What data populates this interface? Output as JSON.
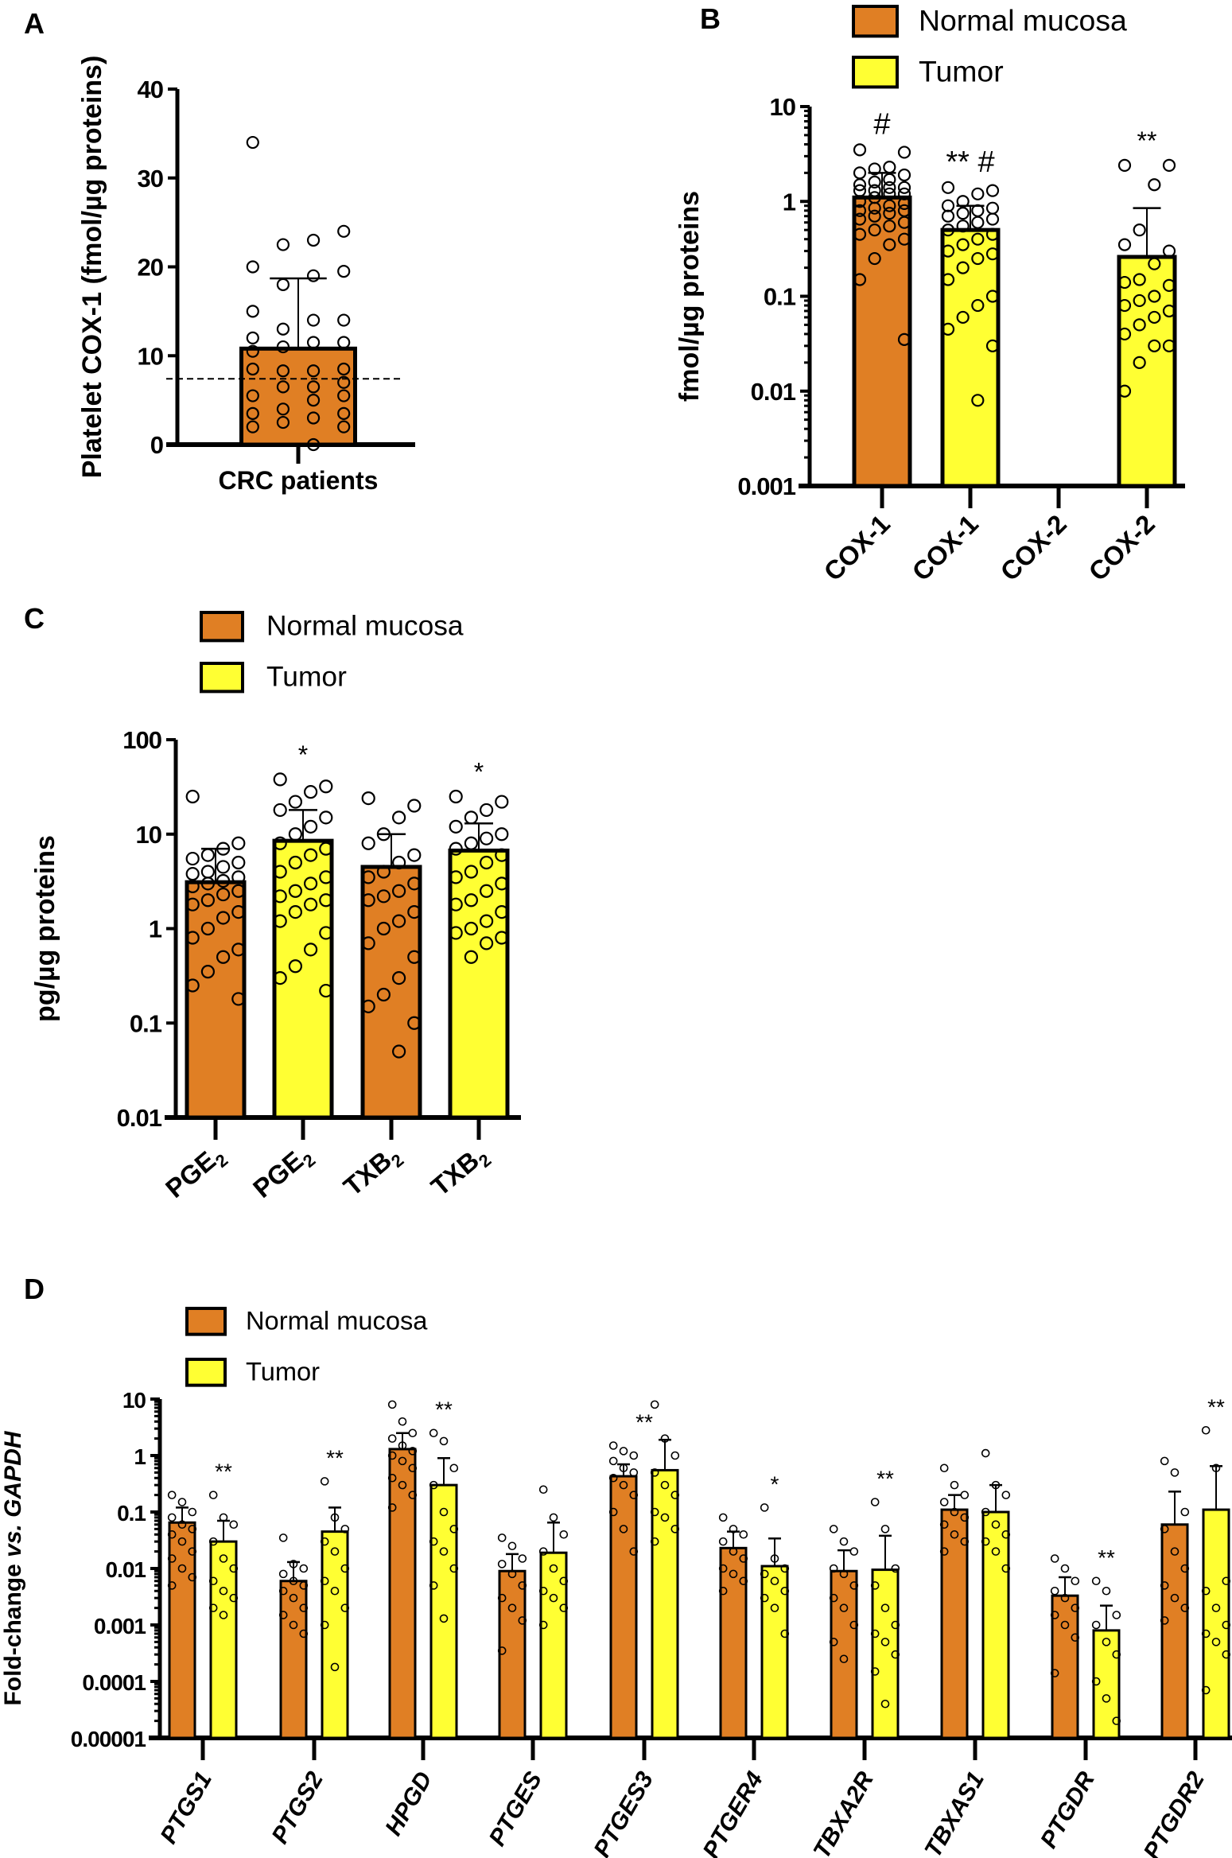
{
  "colors": {
    "normal": "#e07f24",
    "tumor": "#ffff33",
    "ink": "#000000"
  },
  "legend": {
    "normal": "Normal mucosa",
    "tumor": "Tumor"
  },
  "chart_data": [
    {
      "panel": "A",
      "type": "bar",
      "scale": "linear",
      "ylabel": "Platelet COX-1 (fmol/µg proteins)",
      "ylim": [
        0,
        40
      ],
      "yticks": [
        "0",
        "10",
        "20",
        "30",
        "40"
      ],
      "categories": [
        "CRC patients"
      ],
      "reference_line": 7.4,
      "bars": [
        {
          "group": "normal",
          "mean": 10.8,
          "err": 18.7,
          "points": [
            34,
            24,
            23,
            22.5,
            20,
            19.5,
            19,
            18,
            15,
            14,
            14,
            13,
            12,
            11.5,
            11.5,
            11,
            10.5,
            8.5,
            8.3,
            8.3,
            8.5,
            7,
            6.5,
            6.5,
            5.5,
            5.5,
            5,
            4,
            3.5,
            3.5,
            3,
            2.5,
            2,
            2,
            0
          ]
        }
      ]
    },
    {
      "panel": "B",
      "type": "bar",
      "scale": "log",
      "ylabel": "fmol/µg proteins",
      "ylim": [
        0.001,
        10
      ],
      "yticks": [
        "0.001",
        "0.01",
        "0.1",
        "1",
        "10"
      ],
      "categories": [
        "COX-1",
        "COX-1",
        "COX-2",
        "COX-2"
      ],
      "bars": [
        {
          "group": "normal",
          "mean": 1.1,
          "err": 2.0,
          "annotation": "#",
          "points": [
            3.5,
            3.3,
            2.3,
            2.2,
            2.0,
            1.9,
            1.7,
            1.6,
            1.5,
            1.4,
            1.4,
            1.3,
            1.3,
            1.2,
            1.2,
            1.1,
            1.0,
            0.95,
            0.9,
            0.85,
            0.8,
            0.8,
            0.75,
            0.7,
            0.65,
            0.6,
            0.55,
            0.5,
            0.45,
            0.4,
            0.35,
            0.25,
            0.15,
            0.035
          ]
        },
        {
          "group": "tumor",
          "mean": 0.5,
          "err": 0.9,
          "annotation": "** #",
          "points": [
            1.4,
            1.3,
            1.2,
            1.0,
            0.9,
            0.85,
            0.8,
            0.75,
            0.7,
            0.65,
            0.6,
            0.55,
            0.5,
            0.45,
            0.4,
            0.35,
            0.3,
            0.28,
            0.25,
            0.2,
            0.15,
            0.1,
            0.08,
            0.06,
            0.045,
            0.03,
            0.008
          ]
        },
        {
          "group": "normal",
          "mean": null,
          "err": null,
          "points": []
        },
        {
          "group": "tumor",
          "mean": 0.26,
          "err": 0.85,
          "annotation": "**",
          "points": [
            2.4,
            2.4,
            1.5,
            0.5,
            0.35,
            0.3,
            0.22,
            0.15,
            0.14,
            0.13,
            0.1,
            0.09,
            0.08,
            0.07,
            0.06,
            0.05,
            0.04,
            0.03,
            0.03,
            0.02,
            0.01
          ]
        }
      ]
    },
    {
      "panel": "C",
      "type": "bar",
      "scale": "log",
      "ylabel": "pg/µg proteins",
      "ylim": [
        0.01,
        100
      ],
      "yticks": [
        "0.01",
        "0.1",
        "1",
        "10",
        "100"
      ],
      "categories": [
        {
          "text": "PGE",
          "sub": "2"
        },
        {
          "text": "PGE",
          "sub": "2"
        },
        {
          "text": "TXB",
          "sub": "2"
        },
        {
          "text": "TXB",
          "sub": "2"
        }
      ],
      "bars": [
        {
          "group": "normal",
          "mean": 3.1,
          "err": 7,
          "points": [
            25,
            8,
            7,
            6,
            5.5,
            5,
            4.5,
            4,
            3.8,
            3.5,
            3.2,
            3,
            2.8,
            2.5,
            2.3,
            2,
            1.8,
            1.5,
            1.3,
            1,
            0.8,
            0.6,
            0.5,
            0.35,
            0.25,
            0.18
          ]
        },
        {
          "group": "tumor",
          "mean": 8.5,
          "err": 18,
          "annotation": "*",
          "points": [
            38,
            32,
            28,
            22,
            18,
            15,
            12,
            10,
            8,
            7,
            6,
            5,
            4,
            3.5,
            3,
            2.5,
            2.2,
            2,
            1.8,
            1.5,
            1.2,
            0.9,
            0.6,
            0.4,
            0.3,
            0.22
          ]
        },
        {
          "group": "normal",
          "mean": 4.5,
          "err": 10,
          "points": [
            24,
            20,
            15,
            10,
            8,
            6,
            5,
            4,
            3.5,
            3,
            2.5,
            2.2,
            2,
            1.5,
            1.2,
            1,
            0.7,
            0.5,
            0.3,
            0.2,
            0.15,
            0.1,
            0.05
          ]
        },
        {
          "group": "tumor",
          "mean": 6.7,
          "err": 13,
          "annotation": "*",
          "points": [
            25,
            22,
            18,
            15,
            12,
            10,
            9,
            8,
            7,
            6,
            5,
            4,
            3.5,
            3,
            2.5,
            2,
            1.8,
            1.5,
            1.2,
            1,
            0.9,
            0.8,
            0.7,
            0.5
          ]
        }
      ]
    },
    {
      "panel": "D",
      "type": "grouped-bar",
      "scale": "log",
      "ylabel": "Fold-change ",
      "ylabel_italic": "vs. GAPDH",
      "ylim": [
        1e-05,
        10
      ],
      "yticks": [
        "0.00001",
        "0.0001",
        "0.001",
        "0.01",
        "0.1",
        "1",
        "10"
      ],
      "categories": [
        "PTGS1",
        "PTGS2",
        "HPGD",
        "PTGES",
        "PTGES3",
        "PTGER4",
        "TBXA2R",
        "TBXAS1",
        "PTGDR",
        "PTGDR2"
      ],
      "series": [
        {
          "name": "Normal mucosa",
          "group": "normal",
          "means": [
            0.065,
            0.006,
            1.3,
            0.009,
            0.43,
            0.023,
            0.009,
            0.11,
            0.0033,
            0.06
          ],
          "errs": [
            0.12,
            0.013,
            2.5,
            0.018,
            0.7,
            0.045,
            0.021,
            0.2,
            0.007,
            0.23
          ],
          "annotations": [
            "",
            "",
            "",
            "",
            "**",
            "",
            "",
            "",
            "",
            ""
          ],
          "points": [
            [
              0.2,
              0.15,
              0.1,
              0.08,
              0.06,
              0.05,
              0.04,
              0.03,
              0.02,
              0.015,
              0.01,
              0.007,
              0.005
            ],
            [
              0.035,
              0.012,
              0.01,
              0.008,
              0.006,
              0.005,
              0.004,
              0.003,
              0.002,
              0.0015,
              0.001,
              0.0007
            ],
            [
              8,
              4,
              2.5,
              2,
              1.5,
              1.2,
              1,
              0.8,
              0.6,
              0.4,
              0.3,
              0.2,
              0.12
            ],
            [
              0.035,
              0.025,
              0.015,
              0.012,
              0.008,
              0.005,
              0.003,
              0.002,
              0.0012,
              0.00035
            ],
            [
              1.5,
              1.2,
              1,
              0.8,
              0.6,
              0.5,
              0.4,
              0.3,
              0.2,
              0.1,
              0.05,
              0.02
            ],
            [
              0.08,
              0.05,
              0.04,
              0.03,
              0.02,
              0.015,
              0.01,
              0.008,
              0.006,
              0.004
            ],
            [
              0.05,
              0.03,
              0.02,
              0.01,
              0.008,
              0.005,
              0.003,
              0.002,
              0.001,
              0.0005,
              0.00025
            ],
            [
              0.6,
              0.3,
              0.2,
              0.15,
              0.1,
              0.08,
              0.06,
              0.04,
              0.03,
              0.02
            ],
            [
              0.015,
              0.01,
              0.006,
              0.004,
              0.003,
              0.002,
              0.0015,
              0.001,
              0.0006,
              0.00014
            ],
            [
              0.8,
              0.5,
              0.1,
              0.05,
              0.02,
              0.01,
              0.005,
              0.003,
              0.002,
              0.0012
            ]
          ]
        },
        {
          "name": "Tumor",
          "group": "tumor",
          "means": [
            0.03,
            0.045,
            0.3,
            0.019,
            0.55,
            0.011,
            0.0095,
            0.1,
            0.0008,
            0.11
          ],
          "errs": [
            0.07,
            0.12,
            0.9,
            0.065,
            1.9,
            0.034,
            0.038,
            0.3,
            0.0022,
            0.65
          ],
          "annotations": [
            "**",
            "**",
            "**",
            "",
            "",
            "*",
            "**",
            "",
            "**",
            "**"
          ],
          "points": [
            [
              0.2,
              0.08,
              0.06,
              0.03,
              0.015,
              0.01,
              0.006,
              0.004,
              0.003,
              0.002,
              0.0015
            ],
            [
              0.35,
              0.08,
              0.05,
              0.03,
              0.02,
              0.01,
              0.006,
              0.004,
              0.002,
              0.001,
              0.00018
            ],
            [
              2.5,
              1.8,
              0.6,
              0.3,
              0.1,
              0.05,
              0.03,
              0.02,
              0.01,
              0.005,
              0.0013
            ],
            [
              0.25,
              0.08,
              0.04,
              0.02,
              0.01,
              0.006,
              0.004,
              0.003,
              0.002,
              0.001
            ],
            [
              8,
              2,
              1,
              0.5,
              0.3,
              0.2,
              0.1,
              0.08,
              0.05,
              0.03
            ],
            [
              0.12,
              0.015,
              0.01,
              0.008,
              0.006,
              0.004,
              0.003,
              0.002,
              0.0007
            ],
            [
              0.15,
              0.05,
              0.01,
              0.005,
              0.002,
              0.001,
              0.0007,
              0.0005,
              0.0003,
              0.00015,
              4e-05
            ],
            [
              1.1,
              0.3,
              0.2,
              0.1,
              0.06,
              0.04,
              0.03,
              0.02,
              0.01
            ],
            [
              0.006,
              0.004,
              0.0015,
              0.001,
              0.0005,
              0.0003,
              0.0001,
              5e-05,
              2e-05
            ],
            [
              2.8,
              0.6,
              0.006,
              0.004,
              0.002,
              0.001,
              0.0007,
              0.0005,
              0.0003,
              7e-05
            ]
          ]
        }
      ]
    }
  ]
}
